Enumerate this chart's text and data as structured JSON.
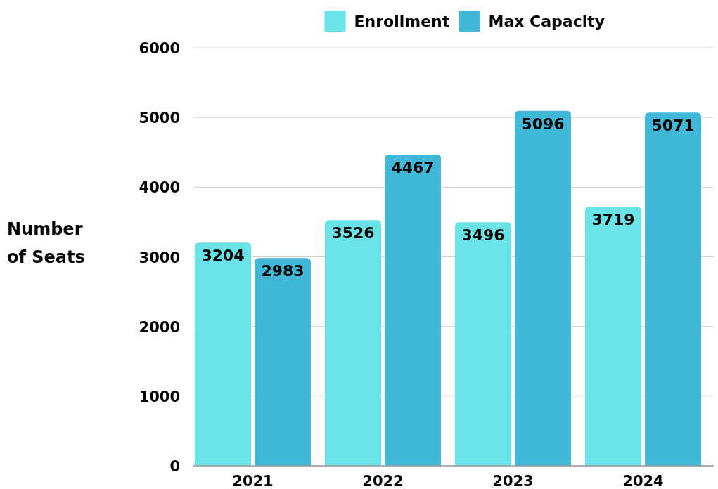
{
  "chart_data": {
    "type": "bar",
    "ylabel": "Number of Seats",
    "categories": [
      "2021",
      "2022",
      "2023",
      "2024"
    ],
    "series": [
      {
        "name": "Enrollment",
        "color": "#6ae3e8",
        "values": [
          3204,
          3526,
          3496,
          3719
        ]
      },
      {
        "name": "Max Capacity",
        "color": "#42b8d8",
        "values": [
          2983,
          4467,
          5096,
          5071
        ]
      }
    ],
    "ylim": [
      0,
      6000
    ],
    "yticks": [
      0,
      1000,
      2000,
      3000,
      4000,
      5000,
      6000
    ],
    "grid": "y",
    "legend": "top",
    "data_labels": true
  }
}
